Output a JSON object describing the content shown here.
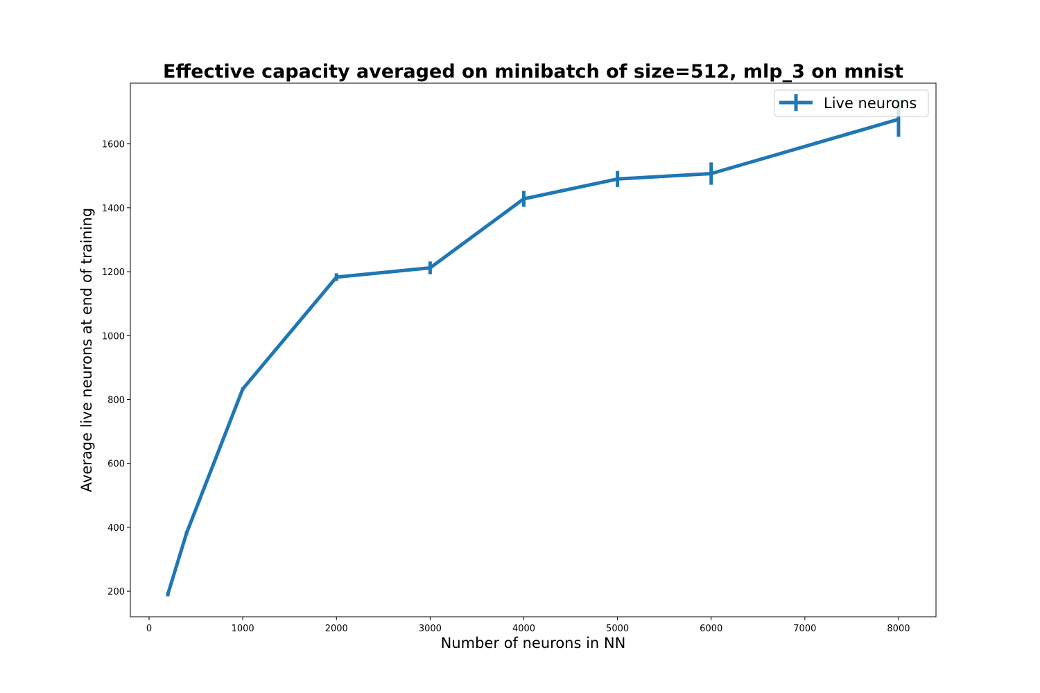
{
  "chart_data": {
    "type": "line",
    "title": "Effective capacity averaged on minibatch of size=512, mlp_3 on mnist",
    "xlabel": "Number of neurons in NN",
    "ylabel": "Average live neurons at end of training",
    "xlim": [
      -200,
      8400
    ],
    "ylim": [
      120,
      1790
    ],
    "xticks": [
      0,
      1000,
      2000,
      3000,
      4000,
      5000,
      6000,
      7000,
      8000
    ],
    "yticks": [
      200,
      400,
      600,
      800,
      1000,
      1200,
      1400,
      1600
    ],
    "grid": false,
    "legend_position": "upper right",
    "series": [
      {
        "name": "Live neurons",
        "color": "#1f77b4",
        "x": [
          200,
          400,
          1000,
          2000,
          3000,
          4000,
          5000,
          6000,
          8000
        ],
        "y": [
          190,
          382,
          833,
          1183,
          1212,
          1428,
          1490,
          1507,
          1677
        ],
        "yerr": [
          6,
          6,
          5,
          12,
          20,
          25,
          25,
          35,
          55
        ]
      }
    ]
  }
}
